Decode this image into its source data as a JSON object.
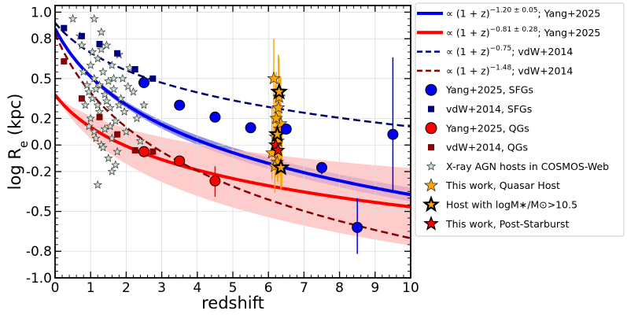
{
  "chart_data": {
    "type": "scatter",
    "xlabel": "redshift",
    "ylabel": "log R",
    "ylabel_sub": "e",
    "ylabel_unit": " (kpc)",
    "xlim": [
      0,
      10
    ],
    "ylim": [
      -1.0,
      1.05
    ],
    "xticks": [
      0,
      1,
      2,
      3,
      4,
      5,
      6,
      7,
      8,
      9,
      10
    ],
    "xtick_labels": [
      "0",
      "1",
      "2",
      "3",
      "4",
      "5",
      "6",
      "7",
      "8",
      "9",
      "10"
    ],
    "yticks": [
      1.0,
      0.8,
      0.5,
      0.2,
      0.0,
      -0.2,
      -0.5,
      -0.8,
      -1.0
    ],
    "ytick_labels": [
      "1.0",
      "0.8",
      "0.5",
      "0.2",
      "0.0",
      "-0.2",
      "-0.5",
      "-0.8",
      "-1.0"
    ],
    "grid": true,
    "legend_position": "outside-right",
    "colors": {
      "sfg": "#0000ee",
      "sfg_band": "#6666dd",
      "qg": "#ff0000",
      "qg_band": "#ffbbbb",
      "vdw_sfg": "#00007a",
      "vdw_qg": "#8b0000",
      "agn_fill": "#c8e0d0",
      "quasar": "#ffa500",
      "post_starburst": "#ff0000"
    },
    "fit_lines": [
      {
        "name": "Yang+2025 SFG fit",
        "slope": -1.2,
        "norm": 0.876
      },
      {
        "name": "Yang+2025 QG fit",
        "slope": -0.81,
        "norm": 0.378
      },
      {
        "name": "vdW+2014 SFG fit",
        "slope": -0.75,
        "norm": 0.92
      },
      {
        "name": "vdW+2014 QG fit",
        "slope": -1.48,
        "norm": 0.84
      }
    ],
    "bands": [
      {
        "name": "SFG fit uncertainty",
        "norm": 0.876,
        "slope_lo": -1.15,
        "slope_hi": -1.25
      },
      {
        "name": "QG fit uncertainty",
        "norm": 0.378,
        "slope_lo": -0.53,
        "slope_hi": -1.09
      }
    ],
    "series": [
      {
        "name": "Yang+2025, SFGs",
        "marker": "circle",
        "x": [
          2.5,
          3.5,
          4.5,
          5.5,
          6.5,
          7.5,
          8.5,
          9.5
        ],
        "y": [
          0.47,
          0.3,
          0.21,
          0.13,
          0.12,
          -0.17,
          -0.62,
          0.08
        ],
        "err_lo": [
          0,
          0,
          0,
          0,
          0,
          0.05,
          0.2,
          0.43
        ],
        "err_hi": [
          0,
          0,
          0,
          0,
          0,
          0.04,
          0.22,
          0.58
        ]
      },
      {
        "name": "vdW+2014, SFGs",
        "marker": "square",
        "x": [
          0.25,
          0.75,
          1.25,
          1.75,
          2.25,
          2.75
        ],
        "y": [
          0.88,
          0.82,
          0.76,
          0.69,
          0.57,
          0.5
        ]
      },
      {
        "name": "Yang+2025, QGs",
        "marker": "circle",
        "x": [
          2.5,
          3.5,
          4.5
        ],
        "y": [
          -0.05,
          -0.12,
          -0.27
        ],
        "err_lo": [
          0,
          0,
          0.12
        ],
        "err_hi": [
          0,
          0,
          0.11
        ]
      },
      {
        "name": "vdW+2014, QGs",
        "marker": "square",
        "x": [
          0.25,
          0.75,
          1.25,
          1.75,
          2.25,
          2.75
        ],
        "y": [
          0.63,
          0.35,
          0.21,
          0.08,
          -0.04,
          -0.05
        ]
      },
      {
        "name": "X-ray AGN hosts in COSMOS-Web",
        "marker": "star",
        "points": [
          [
            0.5,
            0.95
          ],
          [
            0.7,
            0.82
          ],
          [
            0.75,
            0.75
          ],
          [
            0.8,
            0.55
          ],
          [
            0.85,
            0.3
          ],
          [
            0.9,
            0.45
          ],
          [
            0.95,
            0.4
          ],
          [
            1.0,
            0.6
          ],
          [
            1.0,
            0.2
          ],
          [
            1.05,
            0.35
          ],
          [
            1.1,
            0.5
          ],
          [
            1.1,
            0.1
          ],
          [
            1.15,
            0.05
          ],
          [
            1.2,
            0.65
          ],
          [
            1.2,
            0.3
          ],
          [
            1.25,
            0.45
          ],
          [
            1.3,
            0.72
          ],
          [
            1.3,
            0.0
          ],
          [
            1.35,
            0.55
          ],
          [
            1.4,
            0.38
          ],
          [
            1.4,
            0.12
          ],
          [
            1.45,
            0.75
          ],
          [
            1.5,
            0.48
          ],
          [
            1.5,
            -0.1
          ],
          [
            1.55,
            0.28
          ],
          [
            1.6,
            0.6
          ],
          [
            1.6,
            0.05
          ],
          [
            1.65,
            0.42
          ],
          [
            1.7,
            0.18
          ],
          [
            1.75,
            -0.05
          ],
          [
            1.8,
            0.68
          ],
          [
            1.85,
            0.35
          ],
          [
            1.9,
            0.5
          ],
          [
            1.95,
            0.25
          ],
          [
            2.0,
            0.1
          ],
          [
            2.1,
            0.58
          ],
          [
            2.2,
            0.4
          ],
          [
            2.3,
            0.2
          ],
          [
            2.4,
            0.03
          ],
          [
            1.2,
            -0.3
          ],
          [
            1.7,
            -0.15
          ],
          [
            1.1,
            0.95
          ],
          [
            1.3,
            0.85
          ],
          [
            0.95,
            0.14
          ],
          [
            1.35,
            -0.02
          ],
          [
            1.25,
            0.25
          ],
          [
            1.55,
            0.14
          ],
          [
            2.05,
            0.44
          ],
          [
            1.8,
            0.3
          ],
          [
            2.5,
            0.3
          ],
          [
            1.45,
            0.33
          ],
          [
            1.65,
            0.5
          ],
          [
            1.05,
            0.7
          ],
          [
            1.6,
            -0.2
          ],
          [
            1.15,
            0.42
          ]
        ]
      },
      {
        "name": "This work, Quasar Host",
        "marker": "star",
        "points": [
          [
            6.1,
            -0.06
          ],
          [
            6.15,
            0.5
          ],
          [
            6.2,
            0.06
          ],
          [
            6.25,
            -0.13
          ],
          [
            6.28,
            0.28
          ],
          [
            6.3,
            0.36
          ],
          [
            6.32,
            0.12
          ],
          [
            6.35,
            0.16
          ],
          [
            6.38,
            -0.17
          ],
          [
            6.22,
            0.2
          ],
          [
            6.18,
            -0.16
          ],
          [
            6.27,
            0.03
          ]
        ],
        "err_lo": [
          0.2,
          0.4,
          0.3,
          0.15,
          0.5,
          0.45,
          0.35,
          0.5,
          0.15,
          0.4,
          0.2,
          0.3
        ],
        "err_hi": [
          0.35,
          0.3,
          0.4,
          0.25,
          0.4,
          0.3,
          0.4,
          0.35,
          0.3,
          0.35,
          0.3,
          0.35
        ]
      },
      {
        "name": "Host with logM∗/M⊙>10.5",
        "marker": "star",
        "points": [
          [
            6.3,
            0.4
          ],
          [
            6.25,
            0.08
          ],
          [
            6.35,
            -0.17
          ]
        ]
      },
      {
        "name": "This work, Post-Starburst",
        "marker": "star",
        "points": [
          [
            6.2,
            0.0
          ],
          [
            6.27,
            -0.04
          ]
        ]
      }
    ],
    "legend": [
      {
        "label": "∝ (1 + z)",
        "sup": "−1.20 ± 0.05",
        "suffix": "; Yang+2025",
        "kind": "solid-blue"
      },
      {
        "label": "∝ (1 + z)",
        "sup": "−0.81 ± 0.28",
        "suffix": "; Yang+2025",
        "kind": "solid-red"
      },
      {
        "label": "∝ (1 + z)",
        "sup": "−0.75",
        "suffix": "; vdW+2014",
        "kind": "dashed-navy"
      },
      {
        "label": "∝ (1 + z)",
        "sup": "−1.48",
        "suffix": "; vdW+2014",
        "kind": "dashed-darkred"
      },
      {
        "label": "Yang+2025, SFGs",
        "kind": "circle-blue"
      },
      {
        "label": "vdW+2014, SFGs",
        "kind": "square-navy"
      },
      {
        "label": "Yang+2025, QGs",
        "kind": "circle-red"
      },
      {
        "label": "vdW+2014, QGs",
        "kind": "square-darkred"
      },
      {
        "label": "X-ray AGN hosts in COSMOS-Web",
        "kind": "star-grey"
      },
      {
        "label": "This work, Quasar Host",
        "kind": "star-orange"
      },
      {
        "label": "Host with logM∗/M⊙>10.5",
        "kind": "star-orange-thick"
      },
      {
        "label": "This work, Post-Starburst",
        "kind": "star-red"
      }
    ]
  }
}
